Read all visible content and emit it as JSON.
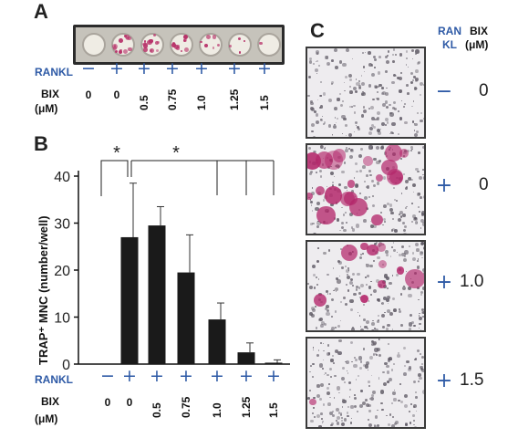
{
  "panel_labels": {
    "a": "A",
    "b": "B",
    "c": "C"
  },
  "row_labels": {
    "rankl": "RANKL",
    "bix": "BIX",
    "bix_unit": "(μM)"
  },
  "panel_a": {
    "rankl_signs": [
      "−",
      "+",
      "+",
      "+",
      "+",
      "+",
      "+"
    ],
    "bix_values": [
      "0",
      "0",
      "0.5",
      "0.75",
      "1.0",
      "1.25",
      "1.5"
    ],
    "well_stain_intensity": [
      0.0,
      0.9,
      0.95,
      0.7,
      0.45,
      0.25,
      0.05
    ],
    "colors": {
      "stain": "#b8336a",
      "plate_frame": "#2b2b2b",
      "well": "#efece4"
    }
  },
  "panel_c": {
    "header_rankl": [
      "RAN",
      "KL"
    ],
    "header_bix": [
      "BIX",
      "(μM)"
    ],
    "rows": [
      {
        "rankl": "−",
        "bix": "0",
        "stain": 0.0
      },
      {
        "rankl": "+",
        "bix": "0",
        "stain": 0.9
      },
      {
        "rankl": "+",
        "bix": "1.0",
        "stain": 0.45
      },
      {
        "rankl": "+",
        "bix": "1.5",
        "stain": 0.05
      }
    ]
  },
  "chart_data": {
    "type": "bar",
    "ylabel": "TRAP⁺ MNC (number/well)",
    "ylim": [
      0,
      40
    ],
    "yticks": [
      0,
      10,
      20,
      30,
      40
    ],
    "categories": [
      "0",
      "0",
      "0.5",
      "0.75",
      "1.0",
      "1.25",
      "1.5"
    ],
    "rankl_signs": [
      "−",
      "+",
      "+",
      "+",
      "+",
      "+",
      "+"
    ],
    "values": [
      0,
      27,
      29.5,
      19.5,
      9.5,
      2.5,
      0.3
    ],
    "error_upper": [
      0,
      11.5,
      4,
      8,
      3.5,
      2,
      0.6
    ],
    "significance": [
      {
        "from": 0,
        "to": 1,
        "label": "*"
      },
      {
        "from": 1,
        "to": [
          4,
          5,
          6
        ],
        "label": "*"
      }
    ],
    "bar_color": "#1a1a1a"
  }
}
